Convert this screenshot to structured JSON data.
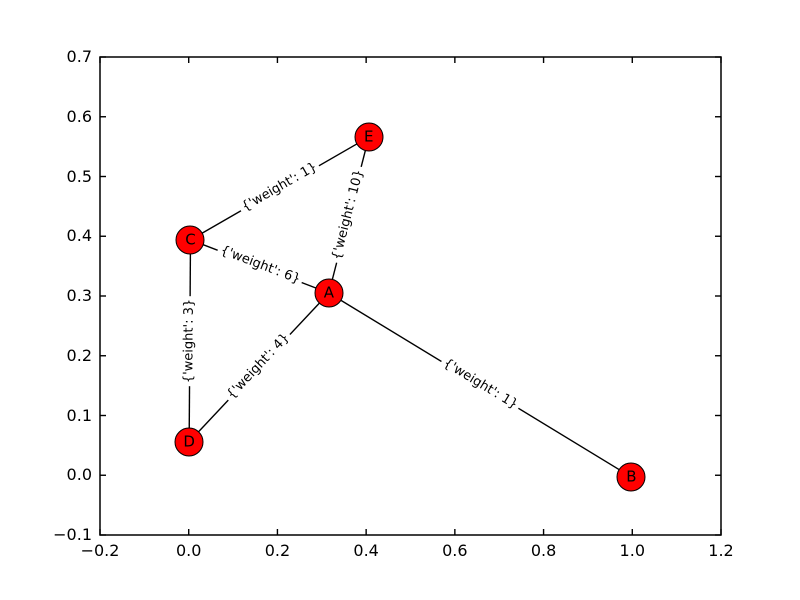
{
  "figure": {
    "background": "#ffffff",
    "title": ""
  },
  "chart_data": {
    "type": "scatter",
    "subtype": "network-graph",
    "title": "",
    "xlabel": "",
    "ylabel": "",
    "grid": false,
    "legend": false,
    "xlim": [
      -0.2,
      1.2
    ],
    "ylim": [
      -0.1,
      0.7
    ],
    "xticks": [
      {
        "label": "−0.2",
        "value": -0.2
      },
      {
        "label": "0.0",
        "value": 0.0
      },
      {
        "label": "0.2",
        "value": 0.2
      },
      {
        "label": "0.4",
        "value": 0.4
      },
      {
        "label": "0.6",
        "value": 0.6
      },
      {
        "label": "0.8",
        "value": 0.8
      },
      {
        "label": "1.0",
        "value": 1.0
      },
      {
        "label": "1.2",
        "value": 1.2
      }
    ],
    "yticks": [
      {
        "label": "−0.1",
        "value": -0.1
      },
      {
        "label": "0.0",
        "value": 0.0
      },
      {
        "label": "0.1",
        "value": 0.1
      },
      {
        "label": "0.2",
        "value": 0.2
      },
      {
        "label": "0.3",
        "value": 0.3
      },
      {
        "label": "0.4",
        "value": 0.4
      },
      {
        "label": "0.5",
        "value": 0.5
      },
      {
        "label": "0.6",
        "value": 0.6
      },
      {
        "label": "0.7",
        "value": 0.7
      }
    ],
    "nodes": [
      {
        "id": "A",
        "x": 0.316,
        "y": 0.305
      },
      {
        "id": "B",
        "x": 0.998,
        "y": -0.003
      },
      {
        "id": "C",
        "x": 0.004,
        "y": 0.394
      },
      {
        "id": "D",
        "x": 0.001,
        "y": 0.056
      },
      {
        "id": "E",
        "x": 0.406,
        "y": 0.566
      }
    ],
    "edges": [
      {
        "source": "C",
        "target": "E",
        "weight": 1,
        "label": "{'weight': 1}"
      },
      {
        "source": "A",
        "target": "E",
        "weight": 10,
        "label": "{'weight': 10}"
      },
      {
        "source": "C",
        "target": "A",
        "weight": 6,
        "label": "{'weight': 6}"
      },
      {
        "source": "C",
        "target": "D",
        "weight": 3,
        "label": "{'weight': 3}"
      },
      {
        "source": "D",
        "target": "A",
        "weight": 4,
        "label": "{'weight': 4}"
      },
      {
        "source": "A",
        "target": "B",
        "weight": 1,
        "label": "{'weight': 1}"
      }
    ],
    "colors": {
      "node_fill": "#ff0000",
      "node_border": "#000000",
      "edge": "#000000",
      "text": "#000000",
      "edge_label_bg": "#ffffff",
      "frame": "#000000"
    }
  }
}
